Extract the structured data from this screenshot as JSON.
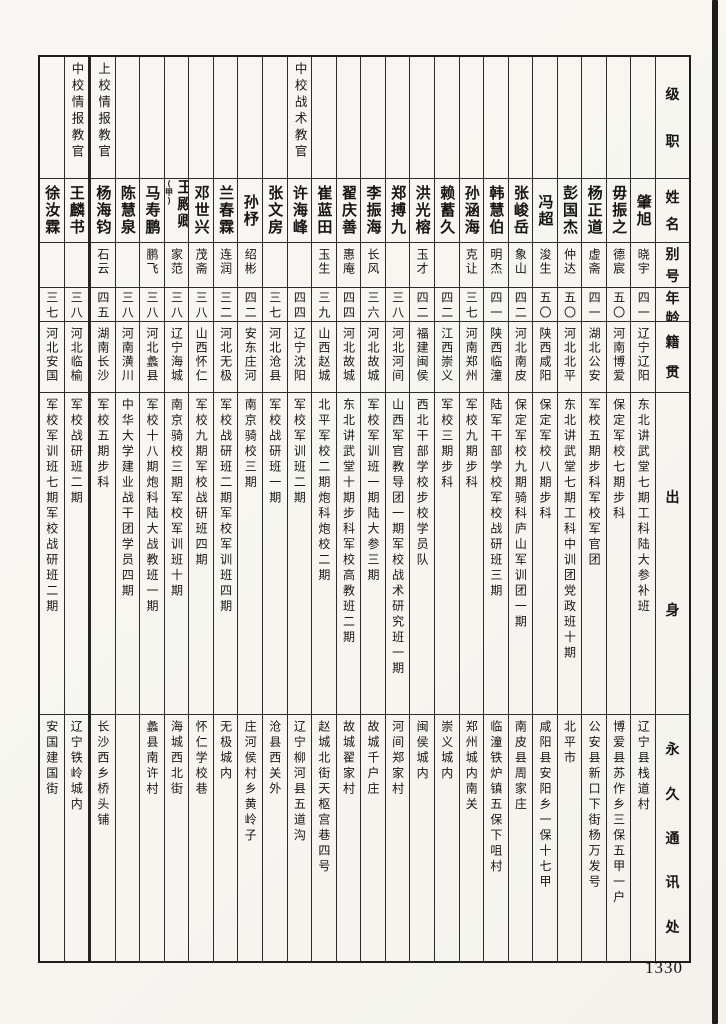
{
  "page": {
    "number": "1330"
  },
  "table": {
    "row_headers": [
      "级职",
      "姓名",
      "别号",
      "年龄",
      "籍贯",
      "出身",
      "永久通讯处"
    ],
    "persons": [
      {
        "rank": "",
        "name": "肇旭",
        "name_note": "",
        "alias": "晓宇",
        "age": "四一",
        "native": "辽宁辽阳",
        "origin": "东北讲武堂七期工科陆大参补班",
        "address": "辽宁县栈道村"
      },
      {
        "rank": "",
        "name": "毋振之",
        "name_note": "",
        "alias": "德宸",
        "age": "五〇",
        "native": "河南博爱",
        "origin": "保定军校七期步科",
        "address": "博爱县苏作乡三保五甲一户"
      },
      {
        "rank": "",
        "name": "杨正道",
        "name_note": "",
        "alias": "虚斋",
        "age": "四一",
        "native": "湖北公安",
        "origin": "军校五期步科军校军官团",
        "address": "公安县新口下街杨万发号"
      },
      {
        "rank": "",
        "name": "彭国杰",
        "name_note": "",
        "alias": "仲达",
        "age": "五〇",
        "native": "河北北平",
        "origin": "东北讲武堂七期工科中训团党政班十期",
        "address": "北平市"
      },
      {
        "rank": "",
        "name": "冯超",
        "name_note": "",
        "alias": "浚生",
        "age": "五〇",
        "native": "陕西咸阳",
        "origin": "保定军校八期步科",
        "address": "咸阳县安阳乡一保十七甲"
      },
      {
        "rank": "",
        "name": "张峻岳",
        "name_note": "",
        "alias": "象山",
        "age": "四二",
        "native": "河北南皮",
        "origin": "保定军校九期骑科庐山军训团一期",
        "address": "南皮县周家庄"
      },
      {
        "rank": "",
        "name": "韩慧伯",
        "name_note": "",
        "alias": "明杰",
        "age": "四一",
        "native": "陕西临潼",
        "origin": "陆军干部学校军校战研班三期",
        "address": "临潼铁炉镇五保下咀村"
      },
      {
        "rank": "",
        "name": "孙涵海",
        "name_note": "",
        "alias": "克让",
        "age": "三七",
        "native": "河南郑州",
        "origin": "军校九期步科",
        "address": "郑州城内南关"
      },
      {
        "rank": "",
        "name": "赖蓄久",
        "name_note": "",
        "alias": "",
        "age": "四二",
        "native": "江西崇义",
        "origin": "军校三期步科",
        "address": "崇义城内"
      },
      {
        "rank": "",
        "name": "洪光榕",
        "name_note": "",
        "alias": "玉才",
        "age": "四二",
        "native": "福建闽侯",
        "origin": "西北干部学校步校学员队",
        "address": "闽侯城内"
      },
      {
        "rank": "",
        "name": "郑搏九",
        "name_note": "",
        "alias": "",
        "age": "三八",
        "native": "河北河间",
        "origin": "山西军官教导团一期军校战术研究班一期",
        "address": "河间郑家村"
      },
      {
        "rank": "",
        "name": "李振海",
        "name_note": "",
        "alias": "长风",
        "age": "三六",
        "native": "河北故城",
        "origin": "军校军训班一期陆大参三期",
        "address": "故城千户庄"
      },
      {
        "rank": "",
        "name": "翟庆善",
        "name_note": "",
        "alias": "惠庵",
        "age": "四四",
        "native": "河北故城",
        "origin": "东北讲武堂十期步科军校高教班二期",
        "address": "故城翟家村"
      },
      {
        "rank": "",
        "name": "崔蓝田",
        "name_note": "",
        "alias": "玉生",
        "age": "三九",
        "native": "山西赵城",
        "origin": "北平军校二期炮科炮校二期",
        "address": "赵城北街天枢宫巷四号"
      },
      {
        "rank": "中校战术教官",
        "name": "许海峰",
        "name_note": "",
        "alias": "",
        "age": "四四",
        "native": "辽宁沈阳",
        "origin": "军校军训班二期",
        "address": "辽宁柳河县五道沟"
      },
      {
        "rank": "",
        "name": "张文房",
        "name_note": "",
        "alias": "",
        "age": "三七",
        "native": "河北沧县",
        "origin": "军校战研班一期",
        "address": "沧县西关外"
      },
      {
        "rank": "",
        "name": "孙杼",
        "name_note": "",
        "alias": "绍彬",
        "age": "四二",
        "native": "安东庄河",
        "origin": "南京骑校三期",
        "address": "庄河侯村乡黄岭子"
      },
      {
        "rank": "",
        "name": "兰春霖",
        "name_note": "",
        "alias": "连润",
        "age": "三二",
        "native": "河北无极",
        "origin": "军校战研班二期军校军训班四期",
        "address": "无极城内"
      },
      {
        "rank": "",
        "name": "邓世兴",
        "name_note": "",
        "alias": "茂斋",
        "age": "三八",
        "native": "山西怀仁",
        "origin": "军校九期军校战研班四期",
        "address": "怀仁学校巷"
      },
      {
        "rank": "",
        "name": "王殿卿",
        "name_note": "(甲)",
        "alias": "家范",
        "age": "三八",
        "native": "辽宁海城",
        "origin": "南京骑校三期军校军训班十期",
        "address": "海城西北街"
      },
      {
        "rank": "",
        "name": "马寿鹏",
        "name_note": "",
        "alias": "鹏飞",
        "age": "三八",
        "native": "河北蠡县",
        "origin": "军校十八期炮科陆大战教班一期",
        "address": "蠡县南许村"
      },
      {
        "rank": "",
        "name": "陈慧泉",
        "name_note": "",
        "alias": "",
        "age": "三八",
        "native": "河南潢川",
        "origin": "中华大学建业战干团学员四期",
        "address": ""
      },
      {
        "rank": "上校情报教官",
        "name": "杨海钧",
        "name_note": "",
        "alias": "石云",
        "age": "四五",
        "native": "湖南长沙",
        "origin": "军校五期步科",
        "address": "长沙西乡桥头铺"
      },
      {
        "rank": "中校情报教官",
        "name": "王麟书",
        "name_note": "",
        "alias": "",
        "age": "三八",
        "native": "河北临榆",
        "origin": "军校战研班二期",
        "address": "辽宁铁岭城内"
      },
      {
        "rank": "",
        "name": "徐汝霖",
        "name_note": "",
        "alias": "",
        "age": "三七",
        "native": "河北安国",
        "origin": "军校军训班七期军校战研班二期",
        "address": "安国建国街"
      }
    ]
  }
}
